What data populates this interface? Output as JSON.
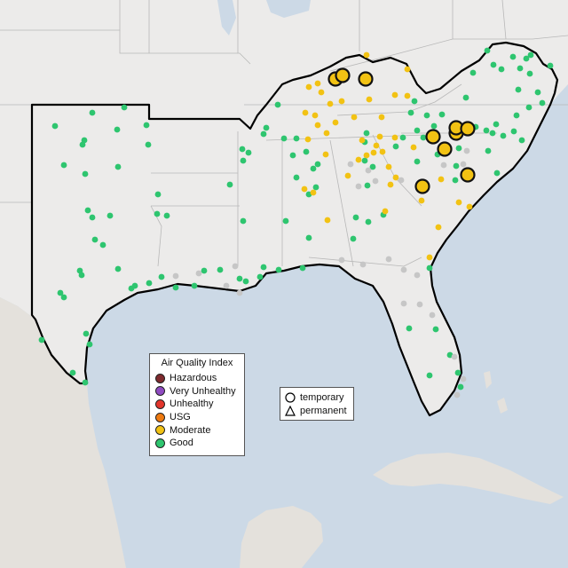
{
  "legend": {
    "title": "Air Quality Index",
    "categories": [
      {
        "label": "Hazardous",
        "color": "#7e2a2e"
      },
      {
        "label": "Very Unhealthy",
        "color": "#8f4bc1"
      },
      {
        "label": "Unhealthy",
        "color": "#e2352b"
      },
      {
        "label": "USG",
        "color": "#ee7a10"
      },
      {
        "label": "Moderate",
        "color": "#f2c213"
      },
      {
        "label": "Good",
        "color": "#2ec56f"
      }
    ]
  },
  "monitor_legend": {
    "items": [
      {
        "label": "temporary",
        "icon": "circle-outline-icon"
      },
      {
        "label": "permanent",
        "icon": "triangle-outline-icon"
      }
    ]
  },
  "colors": {
    "water": "#ccd9e6",
    "land": "#ecebea",
    "no_data_site": "#c6c6c6",
    "region_outline": "#000000"
  }
}
